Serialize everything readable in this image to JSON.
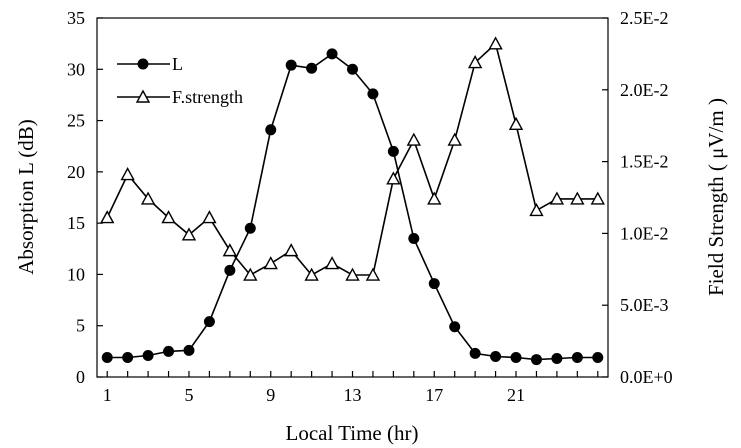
{
  "chart_data": {
    "type": "line",
    "x": [
      1,
      2,
      3,
      4,
      5,
      6,
      7,
      8,
      9,
      10,
      11,
      12,
      13,
      14,
      15,
      16,
      17,
      18,
      19,
      20,
      21,
      22,
      23,
      24,
      25
    ],
    "x_ticks": [
      1,
      5,
      9,
      13,
      17,
      21
    ],
    "x_tick_labels": [
      "1",
      "5",
      "9",
      "13",
      "17",
      "21"
    ],
    "xlabel": "Local Time (hr)",
    "xlim": [
      0.5,
      25.5
    ],
    "ylabel_left": "Absorption L (dB)",
    "ylim_left": [
      0,
      35
    ],
    "yticks_left": [
      "0",
      "5",
      "10",
      "15",
      "20",
      "25",
      "30",
      "35"
    ],
    "ylabel_right": "Field Strength ( μV/m )",
    "ylim_right": [
      0,
      0.025
    ],
    "yticks_right": [
      "0.0E+0",
      "5.0E-3",
      "1.0E-2",
      "1.5E-2",
      "2.0E-2",
      "2.5E-2"
    ],
    "grid": false,
    "legend_position": "top-left",
    "series": [
      {
        "name": "L",
        "axis": "left",
        "marker": "filled-circle",
        "values": [
          1.9,
          1.9,
          2.1,
          2.5,
          2.6,
          5.4,
          10.4,
          14.5,
          24.1,
          30.4,
          30.1,
          31.5,
          30.0,
          27.6,
          22.0,
          13.5,
          9.1,
          4.9,
          2.3,
          2.0,
          1.9,
          1.7,
          1.8,
          1.9,
          1.9
        ]
      },
      {
        "name": "F.strength",
        "axis": "right",
        "marker": "open-triangle",
        "values": [
          0.0111,
          0.0141,
          0.0124,
          0.0111,
          0.0099,
          0.0111,
          0.0088,
          0.0071,
          0.0079,
          0.0088,
          0.0071,
          0.0079,
          0.0071,
          0.0071,
          0.0138,
          0.0165,
          0.0124,
          0.0165,
          0.0219,
          0.0232,
          0.0176,
          0.0116,
          0.0124,
          0.0124,
          0.0124
        ]
      }
    ]
  }
}
